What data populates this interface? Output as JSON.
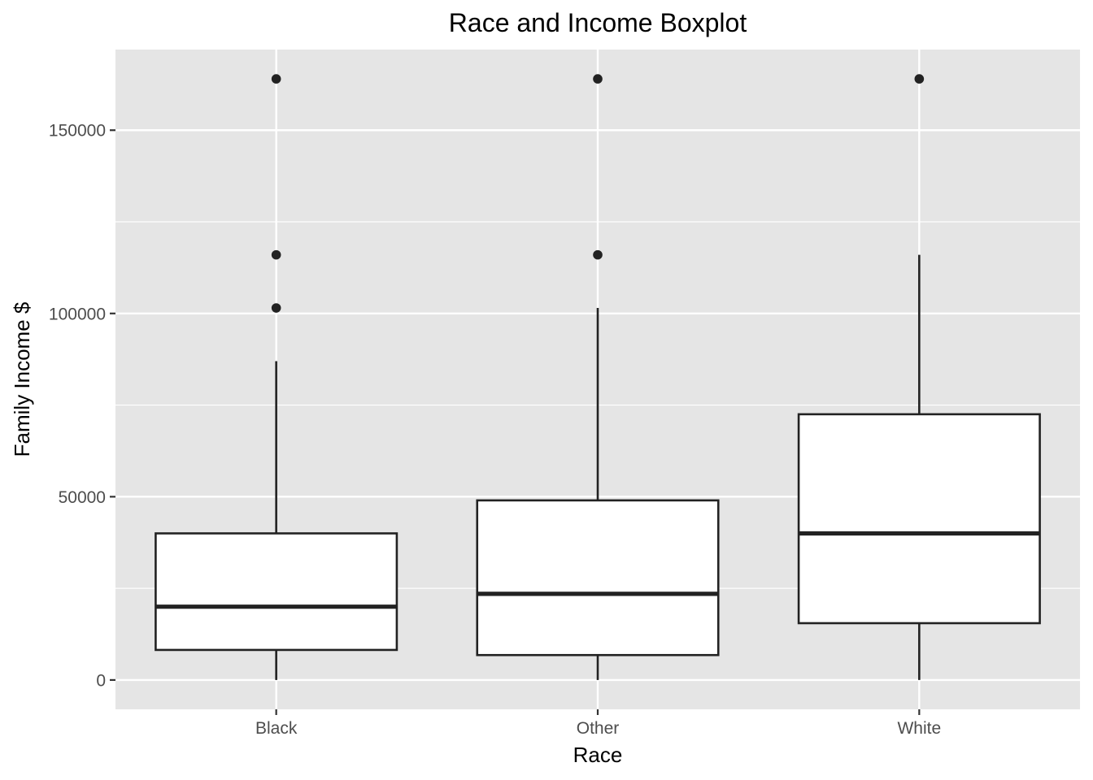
{
  "chart_data": {
    "type": "boxplot",
    "title": "Race and Income Boxplot",
    "xlabel": "Race",
    "ylabel": "Family Income $",
    "categories": [
      "Black",
      "Other",
      "White"
    ],
    "ylim": [
      -8000,
      172000
    ],
    "y_ticks": [
      0,
      50000,
      100000,
      150000
    ],
    "y_tick_labels": [
      "0",
      "50000",
      "100000",
      "150000"
    ],
    "grid": true,
    "legend": "none",
    "boxes": [
      {
        "category": "Black",
        "whisker_low": 0,
        "q1": 8200,
        "median": 20000,
        "q3": 40000,
        "whisker_high": 87000,
        "outliers": [
          101500,
          116000,
          164000
        ]
      },
      {
        "category": "Other",
        "whisker_low": 0,
        "q1": 6800,
        "median": 23500,
        "q3": 49000,
        "whisker_high": 101500,
        "outliers": [
          116000,
          164000
        ]
      },
      {
        "category": "White",
        "whisker_low": 0,
        "q1": 15500,
        "median": 40000,
        "q3": 72500,
        "whisker_high": 116000,
        "outliers": [
          164000
        ]
      }
    ],
    "colors": {
      "panel": "#e5e5e5",
      "grid": "#ffffff",
      "box_fill": "#ffffff",
      "box_line": "#222222",
      "outlier": "#222222"
    }
  }
}
